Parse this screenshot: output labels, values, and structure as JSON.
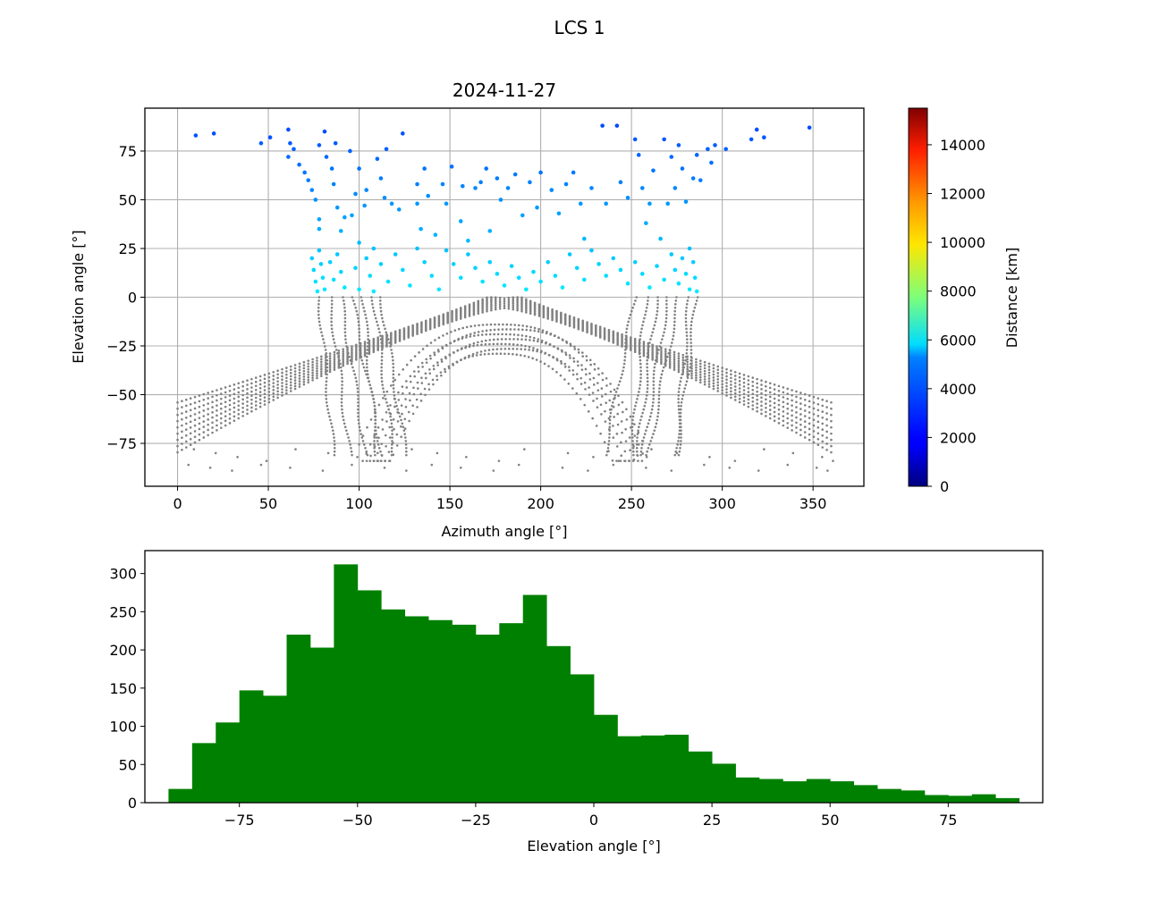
{
  "figure": {
    "suptitle": "LCS 1"
  },
  "chart_data": [
    {
      "type": "scatter",
      "title": "2024-11-27",
      "xlabel": "Azimuth angle [°]",
      "ylabel": "Elevation angle [°]",
      "xlim": [
        -18,
        378
      ],
      "ylim": [
        -97,
        97
      ],
      "xticks": [
        0,
        50,
        100,
        150,
        200,
        250,
        300,
        350
      ],
      "yticks": [
        -75,
        -50,
        -25,
        0,
        25,
        50,
        75
      ],
      "grid": true,
      "colorbar": {
        "label": "Distance [km]",
        "range": [
          0,
          15500
        ],
        "ticks": [
          0,
          2000,
          4000,
          6000,
          8000,
          10000,
          12000,
          14000
        ],
        "colormap": "jet"
      },
      "below_horizon_color": "#808080",
      "series": [
        {
          "color_by": "distance",
          "points": [
            [
              10,
              83
            ],
            [
              20,
              84
            ],
            [
              46,
              79
            ],
            [
              51,
              82
            ],
            [
              61,
              72
            ],
            [
              61,
              86
            ],
            [
              62,
              79
            ],
            [
              64,
              76
            ],
            [
              67,
              68
            ],
            [
              70,
              64
            ],
            [
              72,
              60
            ],
            [
              74,
              55
            ],
            [
              76,
              50
            ],
            [
              78,
              40
            ],
            [
              78,
              35
            ],
            [
              78,
              78
            ],
            [
              81,
              85
            ],
            [
              82,
              72
            ],
            [
              85,
              66
            ],
            [
              86,
              58
            ],
            [
              87,
              79
            ],
            [
              88,
              46
            ],
            [
              90,
              34
            ],
            [
              92,
              41
            ],
            [
              95,
              75
            ],
            [
              96,
              42
            ],
            [
              98,
              53
            ],
            [
              100,
              28
            ],
            [
              100,
              66
            ],
            [
              103,
              47
            ],
            [
              104,
              55
            ],
            [
              108,
              25
            ],
            [
              110,
              71
            ],
            [
              112,
              61
            ],
            [
              114,
              51
            ],
            [
              115,
              76
            ],
            [
              118,
              48
            ],
            [
              122,
              45
            ],
            [
              124,
              84
            ],
            [
              132,
              58
            ],
            [
              132,
              48
            ],
            [
              134,
              35
            ],
            [
              136,
              66
            ],
            [
              138,
              52
            ],
            [
              142,
              32
            ],
            [
              146,
              58
            ],
            [
              148,
              48
            ],
            [
              151,
              67
            ],
            [
              156,
              39
            ],
            [
              157,
              57
            ],
            [
              160,
              29
            ],
            [
              164,
              56
            ],
            [
              167,
              59
            ],
            [
              170,
              66
            ],
            [
              172,
              34
            ],
            [
              176,
              61
            ],
            [
              178,
              50
            ],
            [
              182,
              56
            ],
            [
              186,
              63
            ],
            [
              190,
              42
            ],
            [
              194,
              59
            ],
            [
              198,
              46
            ],
            [
              200,
              64
            ],
            [
              206,
              55
            ],
            [
              210,
              43
            ],
            [
              214,
              58
            ],
            [
              218,
              64
            ],
            [
              222,
              48
            ],
            [
              224,
              30
            ],
            [
              228,
              56
            ],
            [
              234,
              88
            ],
            [
              236,
              48
            ],
            [
              242,
              88
            ],
            [
              244,
              59
            ],
            [
              248,
              51
            ],
            [
              252,
              81
            ],
            [
              254,
              73
            ],
            [
              256,
              56
            ],
            [
              258,
              38
            ],
            [
              260,
              48
            ],
            [
              262,
              65
            ],
            [
              266,
              30
            ],
            [
              268,
              81
            ],
            [
              270,
              48
            ],
            [
              272,
              72
            ],
            [
              274,
              56
            ],
            [
              276,
              78
            ],
            [
              278,
              66
            ],
            [
              280,
              49
            ],
            [
              282,
              25
            ],
            [
              284,
              61
            ],
            [
              286,
              73
            ],
            [
              288,
              60
            ],
            [
              292,
              76
            ],
            [
              294,
              69
            ],
            [
              296,
              78
            ],
            [
              302,
              76
            ],
            [
              316,
              81
            ],
            [
              319,
              86
            ],
            [
              323,
              82
            ],
            [
              348,
              87
            ]
          ]
        },
        {
          "color_by": "distance",
          "points": [
            [
              74,
              20
            ],
            [
              75,
              14
            ],
            [
              76,
              8
            ],
            [
              77,
              3
            ],
            [
              78,
              24
            ],
            [
              79,
              17
            ],
            [
              80,
              10
            ],
            [
              81,
              4
            ],
            [
              84,
              18
            ],
            [
              86,
              9
            ],
            [
              88,
              22
            ],
            [
              90,
              13
            ],
            [
              92,
              5
            ],
            [
              98,
              15
            ],
            [
              100,
              4
            ],
            [
              104,
              20
            ],
            [
              106,
              11
            ],
            [
              108,
              3
            ],
            [
              112,
              17
            ],
            [
              116,
              8
            ],
            [
              120,
              22
            ],
            [
              124,
              14
            ],
            [
              128,
              6
            ],
            [
              132,
              25
            ],
            [
              136,
              18
            ],
            [
              140,
              11
            ],
            [
              144,
              4
            ],
            [
              148,
              24
            ],
            [
              152,
              17
            ],
            [
              156,
              10
            ],
            [
              160,
              22
            ],
            [
              164,
              15
            ],
            [
              168,
              8
            ],
            [
              172,
              18
            ],
            [
              176,
              12
            ],
            [
              180,
              6
            ],
            [
              184,
              16
            ],
            [
              188,
              10
            ],
            [
              192,
              4
            ],
            [
              196,
              13
            ],
            [
              200,
              8
            ],
            [
              204,
              18
            ],
            [
              208,
              11
            ],
            [
              212,
              5
            ],
            [
              216,
              22
            ],
            [
              220,
              15
            ],
            [
              224,
              9
            ],
            [
              228,
              24
            ],
            [
              232,
              17
            ],
            [
              236,
              11
            ],
            [
              240,
              20
            ],
            [
              244,
              14
            ],
            [
              248,
              7
            ],
            [
              252,
              18
            ],
            [
              256,
              12
            ],
            [
              260,
              5
            ],
            [
              264,
              16
            ],
            [
              268,
              9
            ],
            [
              272,
              22
            ],
            [
              274,
              14
            ],
            [
              276,
              7
            ],
            [
              278,
              20
            ],
            [
              280,
              12
            ],
            [
              282,
              4
            ],
            [
              284,
              18
            ],
            [
              285,
              10
            ],
            [
              286,
              3
            ]
          ]
        }
      ]
    },
    {
      "type": "bar",
      "subtype": "histogram",
      "title": "",
      "xlabel": "Elevation angle [°]",
      "ylabel": "",
      "xlim": [
        -95,
        95
      ],
      "ylim": [
        0,
        330
      ],
      "xticks": [
        -75,
        -50,
        -25,
        0,
        25,
        50,
        75
      ],
      "yticks": [
        0,
        50,
        100,
        150,
        200,
        250,
        300
      ],
      "grid": false,
      "color": "#008000",
      "bin_start": -90,
      "bin_width": 5,
      "values": [
        18,
        78,
        105,
        147,
        140,
        220,
        203,
        312,
        278,
        253,
        244,
        239,
        233,
        220,
        235,
        272,
        205,
        168,
        115,
        87,
        88,
        89,
        67,
        51,
        33,
        31,
        28,
        31,
        28,
        23,
        18,
        16,
        10,
        9,
        11,
        6
      ]
    }
  ]
}
